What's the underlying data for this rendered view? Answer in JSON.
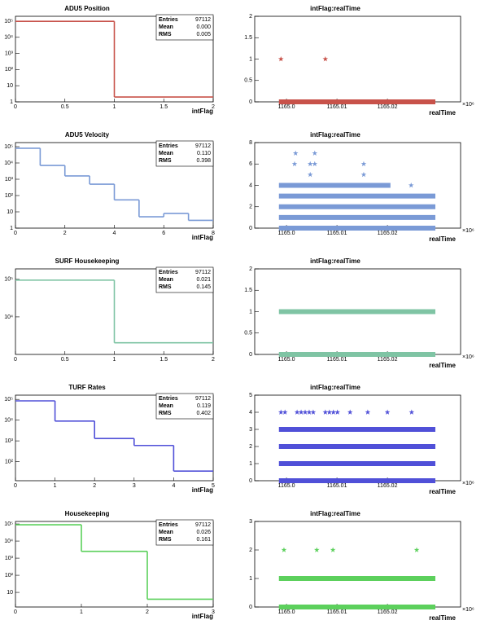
{
  "chart_data": [
    {
      "type": "histogram",
      "title": "ADU5 Position",
      "x_label": "intFlag",
      "color": "#c8524a",
      "log_y": true,
      "bins": [
        0,
        1,
        2
      ],
      "values": [
        97110,
        2
      ],
      "xlim": [
        0,
        2
      ],
      "xticks": [
        0,
        0.5,
        1,
        1.5,
        2
      ],
      "ylim": [
        1,
        200000
      ],
      "yticks": [
        1,
        10,
        {
          "value": 100,
          "label": "10²"
        },
        {
          "value": 1000,
          "label": "10³"
        },
        {
          "value": 10000,
          "label": "10⁴"
        },
        {
          "value": 100000,
          "label": "10⁵"
        }
      ],
      "stats": [
        {
          "name": "Entries",
          "value": 97112
        },
        {
          "name": "Mean",
          "value": 0,
          "label": "0.000"
        },
        {
          "name": "RMS",
          "value": 0.005
        }
      ]
    },
    {
      "type": "scatter",
      "title": "intFlag:realTime",
      "x_label": "realTime",
      "x_multiplier": "×10⁶",
      "color": "#c8524a",
      "xlim": [
        1164.9937,
        1165.0345
      ],
      "xticks": [
        {
          "value": 1165.0,
          "label": "1165.0"
        },
        {
          "value": 1165.01,
          "label": "1165.01"
        },
        {
          "value": 1165.02,
          "label": "1165.02"
        }
      ],
      "ylim": [
        0,
        2
      ],
      "yticks": [
        0,
        0.5,
        1,
        1.5,
        2
      ],
      "bands": [
        {
          "y": 0,
          "x": [
            1164.9985,
            1165.0295
          ]
        }
      ],
      "points": {
        "x": [
          1164.9989,
          1165.0077
        ],
        "y": [
          1,
          1
        ]
      }
    },
    {
      "type": "histogram",
      "title": "ADU5 Velocity",
      "x_label": "intFlag",
      "color": "#7a9ad6",
      "log_y": true,
      "bins": [
        0,
        1,
        2,
        3,
        4,
        5,
        6,
        7,
        8
      ],
      "values": [
        80000,
        7000,
        1600,
        500,
        54,
        5,
        8,
        3
      ],
      "xlim": [
        0,
        8
      ],
      "xticks": [
        0,
        2,
        4,
        6,
        8
      ],
      "ylim": [
        1,
        178000
      ],
      "yticks": [
        1,
        10,
        {
          "value": 100,
          "label": "10²"
        },
        {
          "value": 1000,
          "label": "10³"
        },
        {
          "value": 10000,
          "label": "10⁴"
        },
        {
          "value": 100000,
          "label": "10⁵"
        }
      ],
      "stats": [
        {
          "name": "Entries",
          "value": 97112
        },
        {
          "name": "Mean",
          "value": 0.11,
          "label": "0.110"
        },
        {
          "name": "RMS",
          "value": 0.398
        }
      ]
    },
    {
      "type": "scatter",
      "title": "intFlag:realTime",
      "x_label": "realTime",
      "x_multiplier": "×10⁶",
      "color": "#7a9ad6",
      "xlim": [
        1164.9937,
        1165.0345
      ],
      "xticks": [
        {
          "value": 1165.0,
          "label": "1165.0"
        },
        {
          "value": 1165.01,
          "label": "1165.01"
        },
        {
          "value": 1165.02,
          "label": "1165.02"
        }
      ],
      "ylim": [
        0,
        8
      ],
      "yticks": [
        0,
        2,
        4,
        6,
        8
      ],
      "bands": [
        {
          "y": 0,
          "x": [
            1164.9985,
            1165.0295
          ]
        },
        {
          "y": 1,
          "x": [
            1164.9985,
            1165.0295
          ]
        },
        {
          "y": 2,
          "x": [
            1164.9985,
            1165.0295
          ]
        },
        {
          "y": 3,
          "x": [
            1164.9985,
            1165.0295
          ]
        },
        {
          "y": 4,
          "x": [
            1164.9985,
            1165.0206
          ]
        }
      ],
      "points": {
        "x": [
          1165.0018,
          1165.0056,
          1165.0016,
          1165.0047,
          1165.0056,
          1165.0153,
          1165.0047,
          1165.0153,
          1165.0247
        ],
        "y": [
          7,
          7,
          6,
          6,
          6,
          6,
          5,
          5,
          4
        ]
      }
    },
    {
      "type": "histogram",
      "title": "SURF Housekeeping",
      "color": "#7fc4a4",
      "log_y": true,
      "bins": [
        0,
        1,
        2
      ],
      "values": [
        95072,
        2040
      ],
      "xlim": [
        0,
        2
      ],
      "xticks": [
        0,
        0.5,
        1,
        1.5,
        2
      ],
      "ylim": [
        1000,
        190000
      ],
      "yticks": [
        {
          "value": 10000,
          "label": "10⁴"
        },
        {
          "value": 100000,
          "label": "10⁵"
        }
      ],
      "stats": [
        {
          "name": "Entries",
          "value": 97112
        },
        {
          "name": "Mean",
          "value": 0.021
        },
        {
          "name": "RMS",
          "value": 0.145
        }
      ]
    },
    {
      "type": "scatter",
      "title": "intFlag:realTime",
      "x_label": "realTime",
      "x_multiplier": "×10⁶",
      "color": "#7fc4a4",
      "xlim": [
        1164.9937,
        1165.0345
      ],
      "xticks": [
        {
          "value": 1165.0,
          "label": "1165.0"
        },
        {
          "value": 1165.01,
          "label": "1165.01"
        },
        {
          "value": 1165.02,
          "label": "1165.02"
        }
      ],
      "ylim": [
        0,
        2
      ],
      "yticks": [
        0,
        0.5,
        1,
        1.5,
        2
      ],
      "bands": [
        {
          "y": 0,
          "x": [
            1164.9985,
            1165.0295
          ]
        },
        {
          "y": 1,
          "x": [
            1164.9985,
            1165.0295
          ]
        }
      ],
      "points": {
        "x": [],
        "y": []
      }
    },
    {
      "type": "histogram",
      "title": "TURF Rates",
      "x_label": "intFlag",
      "color": "#5050d8",
      "log_y": true,
      "bins": [
        0,
        1,
        2,
        3,
        4,
        5
      ],
      "values": [
        85000,
        9000,
        1300,
        600,
        35
      ],
      "xlim": [
        0,
        5
      ],
      "xticks": [
        0,
        1,
        2,
        3,
        4,
        5
      ],
      "ylim": [
        12,
        160000
      ],
      "yticks": [
        {
          "value": 100,
          "label": "10²"
        },
        {
          "value": 1000,
          "label": "10³"
        },
        {
          "value": 10000,
          "label": "10⁴"
        },
        {
          "value": 100000,
          "label": "10⁵"
        }
      ],
      "stats": [
        {
          "name": "Entries",
          "value": 97112
        },
        {
          "name": "Mean",
          "value": 0.119
        },
        {
          "name": "RMS",
          "value": 0.402
        }
      ]
    },
    {
      "type": "scatter",
      "title": "intFlag:realTime",
      "x_label": "realTime",
      "x_multiplier": "×10⁶",
      "color": "#5050d8",
      "xlim": [
        1164.9937,
        1165.0345
      ],
      "xticks": [
        {
          "value": 1165.0,
          "label": "1165.0"
        },
        {
          "value": 1165.01,
          "label": "1165.01"
        },
        {
          "value": 1165.02,
          "label": "1165.02"
        }
      ],
      "ylim": [
        0,
        5
      ],
      "yticks": [
        0,
        1,
        2,
        3,
        4,
        5
      ],
      "bands": [
        {
          "y": 0,
          "x": [
            1164.9985,
            1165.0295
          ]
        },
        {
          "y": 1,
          "x": [
            1164.9985,
            1165.0295
          ]
        },
        {
          "y": 2,
          "x": [
            1164.9985,
            1165.0295
          ]
        },
        {
          "y": 3,
          "x": [
            1164.9985,
            1165.0295
          ]
        }
      ],
      "points": {
        "x": [
          1164.9989,
          1164.9997,
          1165.0021,
          1165.0029,
          1165.0037,
          1165.0045,
          1165.0053,
          1165.0077,
          1165.0085,
          1165.0093,
          1165.0101,
          1165.0126,
          1165.0161,
          1165.02,
          1165.0248
        ],
        "y": [
          4,
          4,
          4,
          4,
          4,
          4,
          4,
          4,
          4,
          4,
          4,
          4,
          4,
          4,
          4
        ]
      }
    },
    {
      "type": "histogram",
      "title": "Housekeeping",
      "x_label": "intFlag",
      "color": "#5cd05c",
      "log_y": true,
      "bins": [
        0,
        1,
        2,
        3
      ],
      "values": [
        90000,
        2500,
        4
      ],
      "xlim": [
        0,
        3
      ],
      "xticks": [
        0,
        1,
        2,
        3
      ],
      "ylim": [
        1.4,
        140000
      ],
      "yticks": [
        10,
        {
          "value": 100,
          "label": "10²"
        },
        {
          "value": 1000,
          "label": "10³"
        },
        {
          "value": 10000,
          "label": "10⁴"
        },
        {
          "value": 100000,
          "label": "10⁵"
        }
      ],
      "stats": [
        {
          "name": "Entries",
          "value": 97112
        },
        {
          "name": "Mean",
          "value": 0.026
        },
        {
          "name": "RMS",
          "value": 0.161
        }
      ]
    },
    {
      "type": "scatter",
      "title": "intFlag:realTime",
      "x_label": "realTime",
      "x_multiplier": "×10⁶",
      "color": "#5cd05c",
      "xlim": [
        1164.9937,
        1165.0345
      ],
      "xticks": [
        {
          "value": 1165.0,
          "label": "1165.0"
        },
        {
          "value": 1165.01,
          "label": "1165.01"
        },
        {
          "value": 1165.02,
          "label": "1165.02"
        }
      ],
      "ylim": [
        0,
        3
      ],
      "yticks": [
        0,
        1,
        2,
        3
      ],
      "bands": [
        {
          "y": 0,
          "x": [
            1164.9985,
            1165.0295
          ]
        },
        {
          "y": 1,
          "x": [
            1164.9985,
            1165.0295
          ]
        }
      ],
      "points": {
        "x": [
          1164.9995,
          1165.006,
          1165.0092,
          1165.0258
        ],
        "y": [
          2,
          2,
          2,
          2
        ]
      }
    }
  ]
}
